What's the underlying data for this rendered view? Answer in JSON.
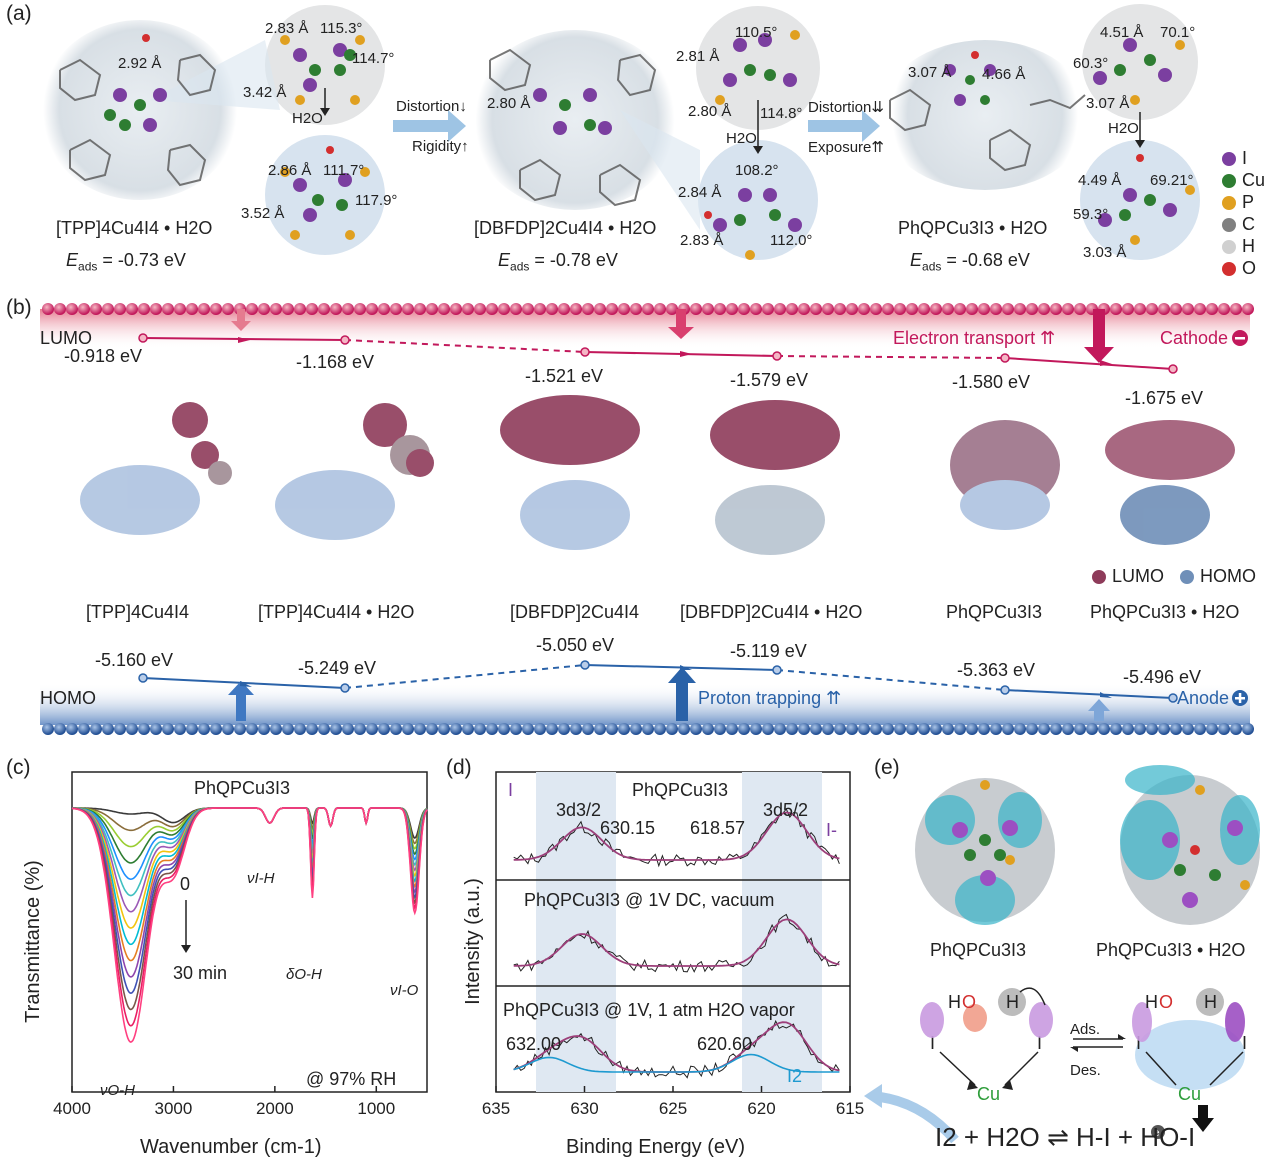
{
  "panel_a": {
    "letter": "(a)",
    "structures": [
      {
        "name": "[TPP]4Cu4I4 • H2O",
        "name_html_base": "[TPP]",
        "eads_label": "E",
        "eads_sub": "ads",
        "eads_value": " = -0.73 eV",
        "bond": "2.92 Å"
      },
      {
        "name": "[DBFDP]2Cu4I4 • H2O",
        "eads_label": "E",
        "eads_sub": "ads",
        "eads_value": " = -0.78 eV",
        "bond": "2.80 Å"
      },
      {
        "name": "PhQPCu3I3 • H2O",
        "eads_label": "E",
        "eads_sub": "ads",
        "eads_value": " = -0.68 eV",
        "bond1": "3.07 Å",
        "bond2": "4.66 Å"
      }
    ],
    "clusters": {
      "c1_top": [
        "2.83 Å",
        "115.3°",
        "114.7°",
        "3.42 Å"
      ],
      "c1_bottom": [
        "2.86 Å",
        "111.7°",
        "117.9°",
        "3.52 Å"
      ],
      "c2_top": [
        "110.5°",
        "2.81 Å",
        "2.80 Å",
        "114.8°"
      ],
      "c2_bottom": [
        "108.2°",
        "2.84 Å",
        "2.83 Å",
        "112.0°"
      ],
      "c3_top": [
        "4.51 Å",
        "70.1°",
        "60.3°",
        "3.07 Å"
      ],
      "c3_bottom": [
        "4.49 Å",
        "69.21°",
        "59.3°",
        "3.03 Å"
      ]
    },
    "h2o": "H2O",
    "arrow1": {
      "line1": "Distortion↓",
      "line2": "Rigidity↑"
    },
    "arrow2": {
      "line1": "Distortion⇊",
      "line2": "Exposure⇈"
    },
    "legend": [
      {
        "symbol": "I",
        "color": "#7b3fa0"
      },
      {
        "symbol": "Cu",
        "color": "#2e7d32"
      },
      {
        "symbol": "P",
        "color": "#e0a020"
      },
      {
        "symbol": "C",
        "color": "#808080"
      },
      {
        "symbol": "H",
        "color": "#d0d0d0"
      },
      {
        "symbol": "O",
        "color": "#d32f2f"
      }
    ]
  },
  "panel_b": {
    "letter": "(b)",
    "lumo_label": "LUMO",
    "homo_label": "HOMO",
    "cathode": "Cathode",
    "anode": "Anode",
    "electron_transport": "Electron transport ⇈",
    "proton_trapping": "Proton trapping ⇈",
    "lumo_values": [
      "-0.918 eV",
      "-1.168 eV",
      "-1.521 eV",
      "-1.579 eV",
      "-1.580 eV",
      "-1.675 eV"
    ],
    "homo_values": [
      "-5.160 eV",
      "-5.249 eV",
      "-5.050 eV",
      "-5.119 eV",
      "-5.363 eV",
      "-5.496 eV"
    ],
    "compounds": [
      "[TPP]4Cu4I4",
      "[TPP]4Cu4I4 • H2O",
      "[DBFDP]2Cu4I4",
      "[DBFDP]2Cu4I4 • H2O",
      "PhQPCu3I3",
      "PhQPCu3I3 • H2O"
    ],
    "orbital_legend": [
      {
        "label": "LUMO",
        "color": "#8e3b5a"
      },
      {
        "label": "HOMO",
        "color": "#6f8fb8"
      }
    ],
    "colors": {
      "lumo": "#c2185b",
      "homo": "#2a62a8"
    }
  },
  "panel_c": {
    "letter": "(c)",
    "title": "PhQPCu3I3",
    "ylabel": "Transmittance (%)",
    "xlabel": "Wavenumber (cm-1)",
    "time_start": "0",
    "time_end": "30 min",
    "rh": "@ 97% RH",
    "peak_labels": {
      "oh": "νO-H",
      "ih": "νI-H",
      "doh": "δO-H",
      "io": "νI-O"
    }
  },
  "panel_d": {
    "letter": "(d)",
    "ylabel": "Intensity (a.u.)",
    "xlabel": "Binding Energy (eV)",
    "element": "I",
    "sub1": {
      "title": "PhQPCu3I3",
      "peak1": "3d3/2",
      "peak2": "3d5/2",
      "v1": "630.15",
      "v2": "618.57",
      "species": "I-"
    },
    "sub2": {
      "title": "PhQPCu3I3 @ 1V DC, vacuum"
    },
    "sub3": {
      "title": "PhQPCu3I3 @ 1V, 1 atm H2O vapor",
      "v1": "632.00",
      "v2": "620.60",
      "species": "I2"
    }
  },
  "panel_e": {
    "letter": "(e)",
    "names": [
      "PhQPCu3I3",
      "PhQPCu3I3 • H2O"
    ],
    "ads": "Ads.",
    "des": "Des.",
    "equation": "I2 + H2O ⇌ H-I + HO-I"
  },
  "chart_data": [
    {
      "type": "line",
      "title": "PhQPCu3I3",
      "xlabel": "Wavenumber (cm-1)",
      "ylabel": "Transmittance (%)",
      "xlim": [
        4000,
        500
      ],
      "xticks": [
        4000,
        3000,
        2000,
        1000
      ],
      "series_note": "FTIR spectra recorded from 0 to 30 min at 97% RH",
      "series": [
        {
          "name": "0 min",
          "oh_dip_depth": 0.02
        },
        {
          "name": "30 min",
          "oh_dip_depth": 0.78
        }
      ]
    },
    {
      "type": "line",
      "xlabel": "Binding Energy (eV)",
      "ylabel": "Intensity (a.u.)",
      "xlim": [
        635,
        615
      ],
      "xticks": [
        635,
        630,
        625,
        620,
        615
      ],
      "panels": [
        {
          "title": "PhQPCu3I3",
          "peaks": [
            630.15,
            618.57
          ]
        },
        {
          "title": "PhQPCu3I3 @ 1V DC, vacuum",
          "peaks": [
            630.15,
            618.57
          ]
        },
        {
          "title": "PhQPCu3I3 @ 1V, 1 atm H2O vapor",
          "peaks": [
            632.0,
            630.15,
            620.6,
            618.57
          ]
        }
      ]
    }
  ]
}
